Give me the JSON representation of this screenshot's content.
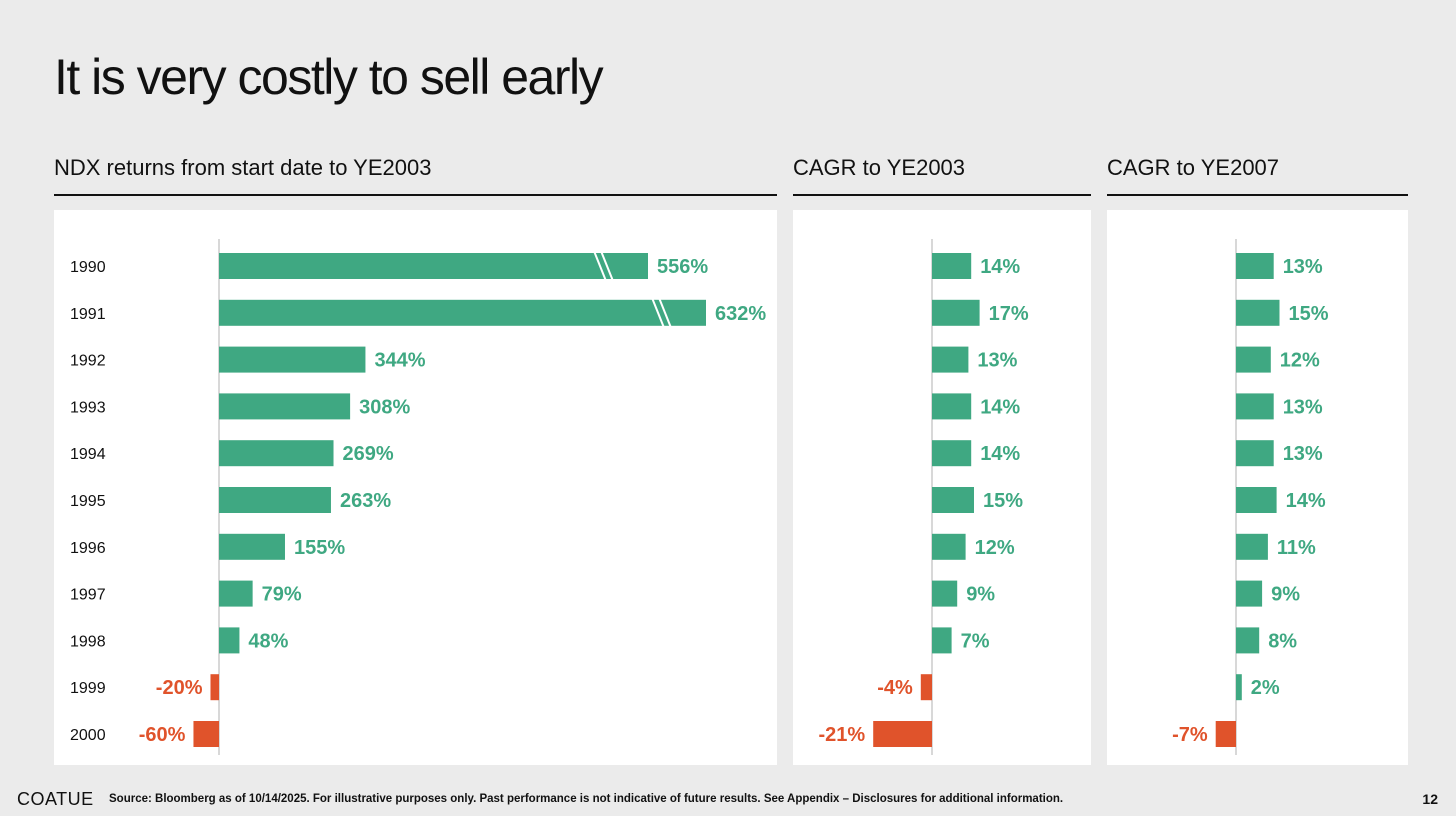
{
  "title": "It is very costly to sell early",
  "footer": {
    "logo": "COATUE",
    "note": "Source: Bloomberg as of 10/14/2025. For illustrative purposes only. Past performance is not indicative of future results. See Appendix – Disclosures for additional information.",
    "page": "12"
  },
  "colors": {
    "positive": "#3fa882",
    "negative": "#e0532b",
    "axis": "#cccccc"
  },
  "chart_data": [
    {
      "type": "bar",
      "orientation": "horizontal",
      "title": "NDX returns from start date to YE2003",
      "categories": [
        "1990",
        "1991",
        "1992",
        "1993",
        "1994",
        "1995",
        "1996",
        "1997",
        "1998",
        "1999",
        "2000"
      ],
      "values": [
        556,
        632,
        344,
        308,
        269,
        263,
        155,
        79,
        48,
        -20,
        -60
      ],
      "labels": [
        "556%",
        "632%",
        "344%",
        "308%",
        "269%",
        "263%",
        "155%",
        "79%",
        "48%",
        "-20%",
        "-60%"
      ],
      "axis_breaks": [
        "1990",
        "1991"
      ],
      "show_categories": true
    },
    {
      "type": "bar",
      "orientation": "horizontal",
      "title": "CAGR to YE2003",
      "categories": [
        "1990",
        "1991",
        "1992",
        "1993",
        "1994",
        "1995",
        "1996",
        "1997",
        "1998",
        "1999",
        "2000"
      ],
      "values": [
        14,
        17,
        13,
        14,
        14,
        15,
        12,
        9,
        7,
        -4,
        -21
      ],
      "labels": [
        "14%",
        "17%",
        "13%",
        "14%",
        "14%",
        "15%",
        "12%",
        "9%",
        "7%",
        "-4%",
        "-21%"
      ],
      "show_categories": false
    },
    {
      "type": "bar",
      "orientation": "horizontal",
      "title": "CAGR to YE2007",
      "categories": [
        "1990",
        "1991",
        "1992",
        "1993",
        "1994",
        "1995",
        "1996",
        "1997",
        "1998",
        "1999",
        "2000"
      ],
      "values": [
        13,
        15,
        12,
        13,
        13,
        14,
        11,
        9,
        8,
        2,
        -7
      ],
      "labels": [
        "13%",
        "15%",
        "12%",
        "13%",
        "13%",
        "14%",
        "11%",
        "9%",
        "8%",
        "2%",
        "-7%"
      ],
      "show_categories": false
    }
  ]
}
